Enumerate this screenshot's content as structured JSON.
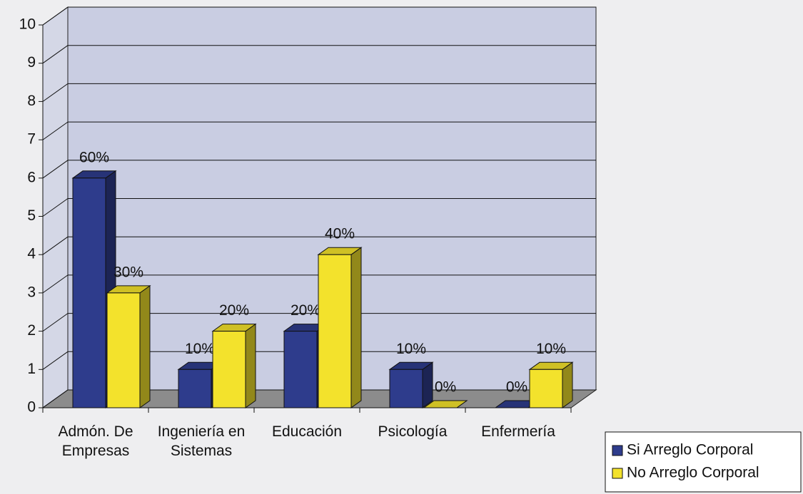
{
  "chart_data": {
    "type": "bar3d",
    "categories": [
      "Admón. De Empresas",
      "Ingeniería en Sistemas",
      "Educación",
      "Psicología",
      "Enfermería"
    ],
    "series": [
      {
        "name": "Si Arreglo Corporal",
        "color": "#2e3c8c",
        "values": [
          6,
          1,
          2,
          1,
          0
        ],
        "value_labels": [
          "60%",
          "10%",
          "20%",
          "10%",
          "0%"
        ]
      },
      {
        "name": "No Arreglo Corporal",
        "color": "#f3e22c",
        "values": [
          3,
          2,
          4,
          0,
          1
        ],
        "value_labels": [
          "30%",
          "20%",
          "40%",
          "0%",
          "10%"
        ]
      }
    ],
    "ylim": [
      0,
      10
    ],
    "yticks": [
      0,
      1,
      2,
      3,
      4,
      5,
      6,
      7,
      8,
      9,
      10
    ],
    "grid": true,
    "legend": "bottom-right"
  }
}
